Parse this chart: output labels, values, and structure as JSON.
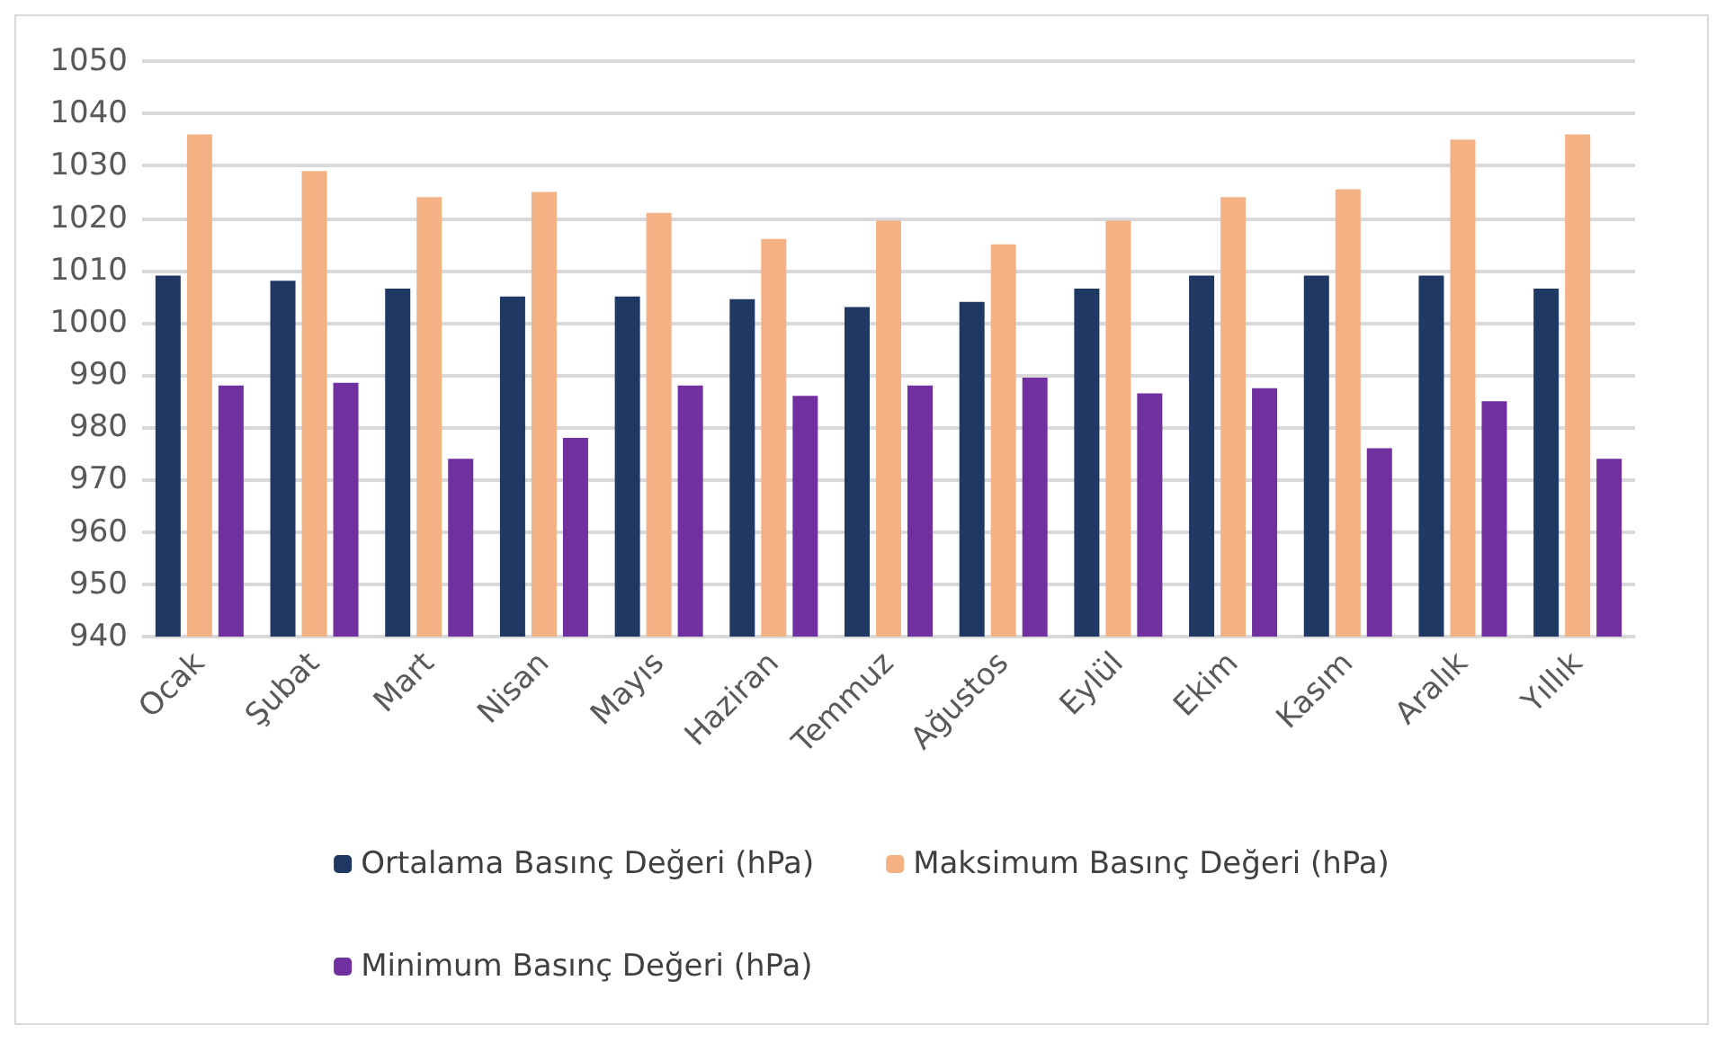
{
  "chart_data": {
    "type": "bar",
    "categories": [
      "Ocak",
      "Şubat",
      "Mart",
      "Nisan",
      "Mayıs",
      "Haziran",
      "Temmuz",
      "Ağustos",
      "Eylül",
      "Ekim",
      "Kasım",
      "Aralık",
      "Yıllık"
    ],
    "series": [
      {
        "name": "Ortalama Basınç Değeri (hPa)",
        "color": "#203864",
        "values": [
          1009,
          1008,
          1006.5,
          1005,
          1005,
          1004.5,
          1003,
          1004,
          1006.5,
          1009,
          1009,
          1009,
          1006.5
        ]
      },
      {
        "name": "Maksimum Basınç Değeri (hPa)",
        "color": "#f4b183",
        "values": [
          1036,
          1029,
          1024,
          1025,
          1021,
          1016,
          1019.5,
          1015,
          1019.5,
          1024,
          1025.5,
          1035,
          1036
        ]
      },
      {
        "name": "Minimum Basınç Değeri (hPa)",
        "color": "#7030a0",
        "values": [
          988,
          988.5,
          974,
          978,
          988,
          986,
          988,
          989.5,
          986.5,
          987.5,
          976,
          985,
          974
        ]
      }
    ],
    "ylim": [
      940,
      1050
    ],
    "yticks": [
      940,
      950,
      960,
      970,
      980,
      990,
      1000,
      1010,
      1020,
      1030,
      1040,
      1050
    ],
    "grid": "y",
    "legend": "bottom"
  }
}
